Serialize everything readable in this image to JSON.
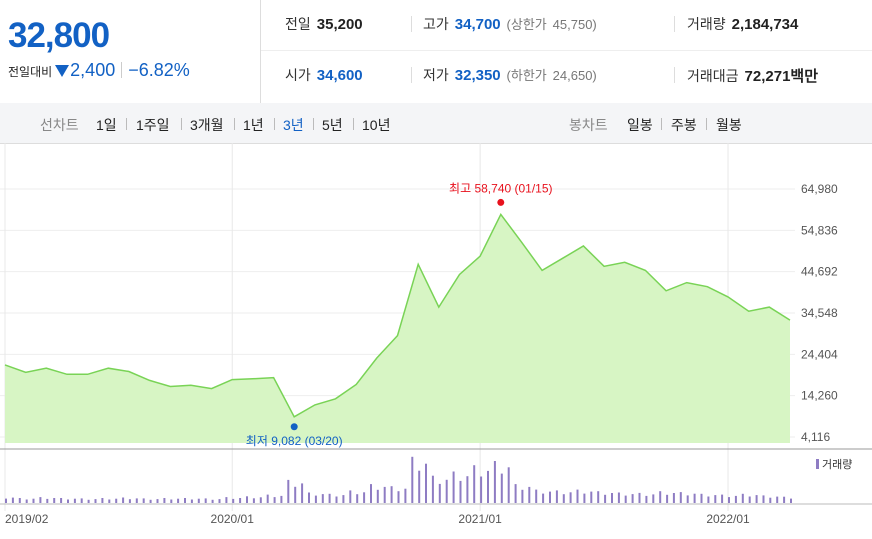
{
  "quote": {
    "price": "32,800",
    "change_label": "전일대비",
    "change_amount": "2,400",
    "change_percent": "−6.82%",
    "stats": {
      "prev_close": {
        "label": "전일",
        "value": "35,200"
      },
      "high": {
        "label": "고가",
        "value": "34,700",
        "sub_label": "(상한가",
        "sub_value": "45,750)"
      },
      "volume": {
        "label": "거래량",
        "value": "2,184,734"
      },
      "open": {
        "label": "시가",
        "value": "34,600"
      },
      "low": {
        "label": "저가",
        "value": "32,350",
        "sub_label": "(하한가",
        "sub_value": "24,650)"
      },
      "amount": {
        "label": "거래대금",
        "value": "72,271백만"
      }
    }
  },
  "line_chart_tabs": {
    "label": "선차트",
    "items": [
      "1일",
      "1주일",
      "3개월",
      "1년",
      "3년",
      "5년",
      "10년"
    ],
    "active": "3년"
  },
  "candle_tabs": {
    "label": "봉차트",
    "items": [
      "일봉",
      "주봉",
      "월봉"
    ]
  },
  "colors": {
    "accent_blue": "#1261c4",
    "line_green": "#79d356",
    "area_green": "#d7f5c4",
    "high_red": "#e8111d",
    "volume_purple": "#8e7cc3"
  },
  "chart_data": {
    "type": "area",
    "y_ticks": [
      "64,980",
      "54,836",
      "44,692",
      "34,548",
      "24,404",
      "14,260",
      "4,116"
    ],
    "y_tick_values": [
      64980,
      54836,
      44692,
      34548,
      24404,
      14260,
      4116
    ],
    "x_ticks": [
      "2019/02",
      "2020/01",
      "2021/01",
      "2022/01"
    ],
    "high_annotation": "최고 58,740 (01/15)",
    "low_annotation": "최저 9,082 (03/20)",
    "volume_legend": "거래량",
    "price_start": "2019-02",
    "price_series_monthly": [
      21800,
      20000,
      21000,
      19500,
      19500,
      21000,
      20200,
      18000,
      16500,
      16800,
      16000,
      18200,
      18400,
      18700,
      9082,
      12000,
      13500,
      17000,
      23500,
      29000,
      46500,
      36000,
      44000,
      48500,
      58740,
      52000,
      45000,
      48000,
      51000,
      46000,
      47000,
      45000,
      40000,
      42000,
      41000,
      38500,
      35000,
      36000,
      32800
    ],
    "volume_series_monthly": [
      1.5,
      1.2,
      1.4,
      1.2,
      1.1,
      1.2,
      1.3,
      1.1,
      1.2,
      1.2,
      1.1,
      1.4,
      1.6,
      2.0,
      5.5,
      2.5,
      2.2,
      3.0,
      4.5,
      4.0,
      11.0,
      6.5,
      7.5,
      9.0,
      10.0,
      4.5,
      3.2,
      3.0,
      3.2,
      2.8,
      2.5,
      2.4,
      2.8,
      2.6,
      2.2,
      2.0,
      2.2,
      1.8,
      1.5
    ]
  }
}
